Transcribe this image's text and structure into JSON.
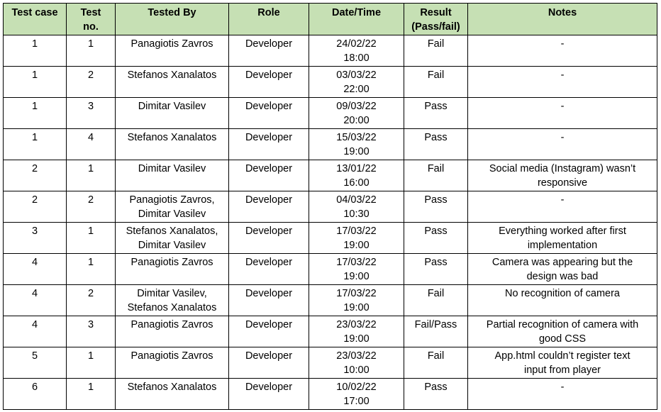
{
  "headers": {
    "test_case": "Test case",
    "test_no_line1": "Test",
    "test_no_line2": "no.",
    "tested_by": "Tested By",
    "role": "Role",
    "datetime": "Date/Time",
    "result_line1": "Result",
    "result_line2": "(Pass/fail)",
    "notes": "Notes"
  },
  "rows": [
    {
      "test_case": "1",
      "test_no": "1",
      "tested_by_1": "Panagiotis Zavros",
      "tested_by_2": "",
      "role": "Developer",
      "date": "24/02/22",
      "time": "18:00",
      "result": "Fail",
      "notes_1": "-",
      "notes_2": ""
    },
    {
      "test_case": "1",
      "test_no": "2",
      "tested_by_1": "Stefanos Xanalatos",
      "tested_by_2": "",
      "role": "Developer",
      "date": "03/03/22",
      "time": "22:00",
      "result": "Fail",
      "notes_1": "-",
      "notes_2": ""
    },
    {
      "test_case": "1",
      "test_no": "3",
      "tested_by_1": "Dimitar Vasilev",
      "tested_by_2": "",
      "role": "Developer",
      "date": "09/03/22",
      "time": "20:00",
      "result": "Pass",
      "notes_1": "-",
      "notes_2": ""
    },
    {
      "test_case": "1",
      "test_no": "4",
      "tested_by_1": "Stefanos Xanalatos",
      "tested_by_2": "",
      "role": "Developer",
      "date": "15/03/22",
      "time": "19:00",
      "result": "Pass",
      "notes_1": "-",
      "notes_2": ""
    },
    {
      "test_case": "2",
      "test_no": "1",
      "tested_by_1": "Dimitar Vasilev",
      "tested_by_2": "",
      "role": "Developer",
      "date": "13/01/22",
      "time": "16:00",
      "result": "Fail",
      "notes_1": "Social media (Instagram) wasn’t",
      "notes_2": "responsive"
    },
    {
      "test_case": "2",
      "test_no": "2",
      "tested_by_1": "Panagiotis Zavros,",
      "tested_by_2": "Dimitar Vasilev",
      "role": "Developer",
      "date": "04/03/22",
      "time": "10:30",
      "result": "Pass",
      "notes_1": "-",
      "notes_2": ""
    },
    {
      "test_case": "3",
      "test_no": "1",
      "tested_by_1": "Stefanos Xanalatos,",
      "tested_by_2": "Dimitar Vasilev",
      "role": "Developer",
      "date": "17/03/22",
      "time": "19:00",
      "result": "Pass",
      "notes_1": "Everything worked after first",
      "notes_2": "implementation"
    },
    {
      "test_case": "4",
      "test_no": "1",
      "tested_by_1": "Panagiotis Zavros",
      "tested_by_2": "",
      "role": "Developer",
      "date": "17/03/22",
      "time": "19:00",
      "result": "Pass",
      "notes_1": "Camera was appearing but the",
      "notes_2": "design was bad"
    },
    {
      "test_case": "4",
      "test_no": "2",
      "tested_by_1": "Dimitar Vasilev,",
      "tested_by_2": "Stefanos Xanalatos",
      "role": "Developer",
      "date": "17/03/22",
      "time": "19:00",
      "result": "Fail",
      "notes_1": "No recognition of camera",
      "notes_2": ""
    },
    {
      "test_case": "4",
      "test_no": "3",
      "tested_by_1": "Panagiotis Zavros",
      "tested_by_2": "",
      "role": "Developer",
      "date": "23/03/22",
      "time": "19:00",
      "result": "Fail/Pass",
      "notes_1": "Partial recognition of camera with",
      "notes_2": "good CSS"
    },
    {
      "test_case": "5",
      "test_no": "1",
      "tested_by_1": "Panagiotis Zavros",
      "tested_by_2": "",
      "role": "Developer",
      "date": "23/03/22",
      "time": "10:00",
      "result": "Fail",
      "notes_1": "App.html couldn’t register text",
      "notes_2": "input from player"
    },
    {
      "test_case": "6",
      "test_no": "1",
      "tested_by_1": "Stefanos Xanalatos",
      "tested_by_2": "",
      "role": "Developer",
      "date": "10/02/22",
      "time": "17:00",
      "result": "Pass",
      "notes_1": "-",
      "notes_2": ""
    }
  ]
}
